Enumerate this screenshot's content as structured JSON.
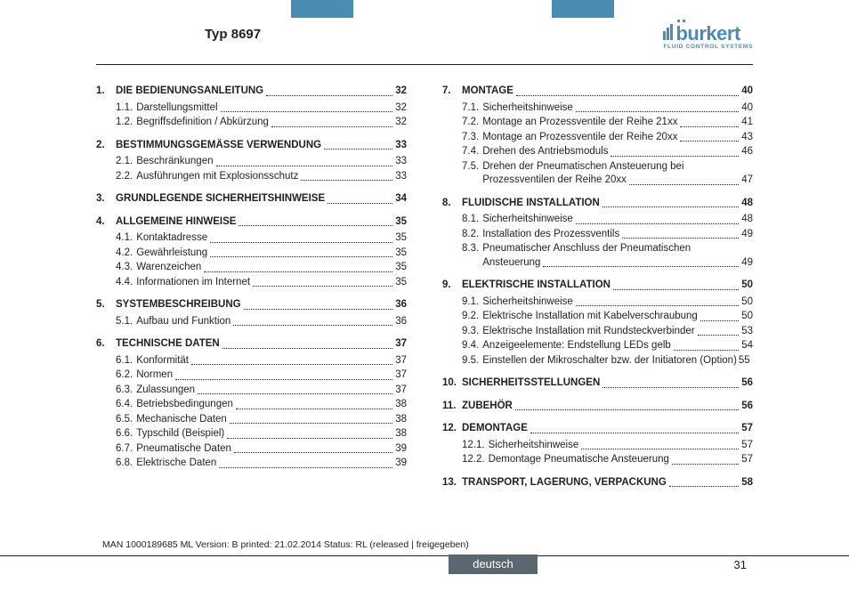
{
  "header": {
    "title": "Typ 8697"
  },
  "logo": {
    "main": "burkert",
    "sub": "FLUID CONTROL SYSTEMS"
  },
  "lang_label": "deutsch",
  "page_number": "31",
  "footer_meta": "MAN 1000189685 ML Version: B printed: 21.02.2014 Status: RL (released | freigegeben)",
  "left_sections": [
    {
      "num": "1.",
      "title": "DIE BEDIENUNGSANLEITUNG",
      "page": "32",
      "subs": [
        {
          "num": "1.1.",
          "text": "Darstellungsmittel",
          "page": "32"
        },
        {
          "num": "1.2.",
          "text": "Begriffsdefinition / Abkürzung",
          "page": "32"
        }
      ]
    },
    {
      "num": "2.",
      "title": "BESTIMMUNGSGEMÄSSE VERWENDUNG",
      "page": "33",
      "subs": [
        {
          "num": "2.1.",
          "text": "Beschränkungen",
          "page": "33"
        },
        {
          "num": "2.2.",
          "text": "Ausführungen mit Explosionsschutz",
          "page": "33"
        }
      ]
    },
    {
      "num": "3.",
      "title": "GRUNDLEGENDE SICHERHEITSHINWEISE",
      "page": "34",
      "subs": []
    },
    {
      "num": "4.",
      "title": "ALLGEMEINE HINWEISE",
      "page": "35",
      "subs": [
        {
          "num": "4.1.",
          "text": "Kontaktadresse",
          "page": "35"
        },
        {
          "num": "4.2.",
          "text": "Gewährleistung",
          "page": "35"
        },
        {
          "num": "4.3.",
          "text": "Warenzeichen",
          "page": "35"
        },
        {
          "num": "4.4.",
          "text": "Informationen im Internet",
          "page": "35"
        }
      ]
    },
    {
      "num": "5.",
      "title": "SYSTEMBESCHREIBUNG",
      "page": "36",
      "subs": [
        {
          "num": "5.1.",
          "text": "Aufbau und Funktion",
          "page": "36"
        }
      ]
    },
    {
      "num": "6.",
      "title": "TECHNISCHE DATEN",
      "page": "37",
      "subs": [
        {
          "num": "6.1.",
          "text": "Konformität",
          "page": "37"
        },
        {
          "num": "6.2.",
          "text": "Normen",
          "page": "37"
        },
        {
          "num": "6.3.",
          "text": "Zulassungen",
          "page": "37"
        },
        {
          "num": "6.4.",
          "text": "Betriebsbedingungen",
          "page": "38"
        },
        {
          "num": "6.5.",
          "text": "Mechanische Daten",
          "page": "38"
        },
        {
          "num": "6.6.",
          "text": "Typschild (Beispiel)",
          "page": "38"
        },
        {
          "num": "6.7.",
          "text": "Pneumatische Daten",
          "page": "39"
        },
        {
          "num": "6.8.",
          "text": "Elektrische Daten",
          "page": "39"
        }
      ]
    }
  ],
  "right_sections": [
    {
      "num": "7.",
      "title": "MONTAGE",
      "page": "40",
      "subs": [
        {
          "num": "7.1.",
          "text": "Sicherheitshinweise",
          "page": "40"
        },
        {
          "num": "7.2.",
          "text": "Montage an Prozessventile der Reihe 21xx",
          "page": "41"
        },
        {
          "num": "7.3.",
          "text": "Montage an Prozessventile der Reihe 20xx",
          "page": "43"
        },
        {
          "num": "7.4.",
          "text": "Drehen des Antriebsmoduls",
          "page": "46"
        },
        {
          "num": "7.5.",
          "text": "Drehen der Pneumatischen Ansteuerung bei",
          "text2": "Prozessventilen der Reihe 20xx",
          "page": "47",
          "multiline": true
        }
      ]
    },
    {
      "num": "8.",
      "title": "FLUIDISCHE INSTALLATION",
      "page": "48",
      "subs": [
        {
          "num": "8.1.",
          "text": "Sicherheitshinweise",
          "page": "48"
        },
        {
          "num": "8.2.",
          "text": "Installation des Prozessventils",
          "page": "49"
        },
        {
          "num": "8.3.",
          "text": "Pneumatischer Anschluss der Pneumatischen",
          "text2": "Ansteuerung",
          "page": "49",
          "multiline": true
        }
      ]
    },
    {
      "num": "9.",
      "title": "ELEKTRISCHE INSTALLATION",
      "page": "50",
      "subs": [
        {
          "num": "9.1.",
          "text": "Sicherheitshinweise",
          "page": "50"
        },
        {
          "num": "9.2.",
          "text": "Elektrische Installation mit Kabelverschraubung",
          "page": "50"
        },
        {
          "num": "9.3.",
          "text": "Elektrische Installation mit Rundsteckverbinder",
          "page": "53"
        },
        {
          "num": "9.4.",
          "text": "Anzeigeelemente: Endstellung LEDs gelb",
          "page": "54"
        },
        {
          "num": "9.5.",
          "text": "Einstellen der Mikroschalter bzw. der Initiatoren (Option)",
          "page": "55",
          "nodots": true
        }
      ]
    },
    {
      "num": "10.",
      "title": "SICHERHEITSSTELLUNGEN",
      "page": "56",
      "subs": []
    },
    {
      "num": "11.",
      "title": "ZUBEHÖR",
      "page": "56",
      "subs": []
    },
    {
      "num": "12.",
      "title": "DEMONTAGE",
      "page": "57",
      "subs": [
        {
          "num": "12.1.",
          "text": "Sicherheitshinweise",
          "page": "57"
        },
        {
          "num": "12.2.",
          "text": "Demontage Pneumatische Ansteuerung",
          "page": "57"
        }
      ]
    },
    {
      "num": "13.",
      "title": "TRANSPORT, LAGERUNG, VERPACKUNG",
      "page": "58",
      "subs": []
    }
  ]
}
